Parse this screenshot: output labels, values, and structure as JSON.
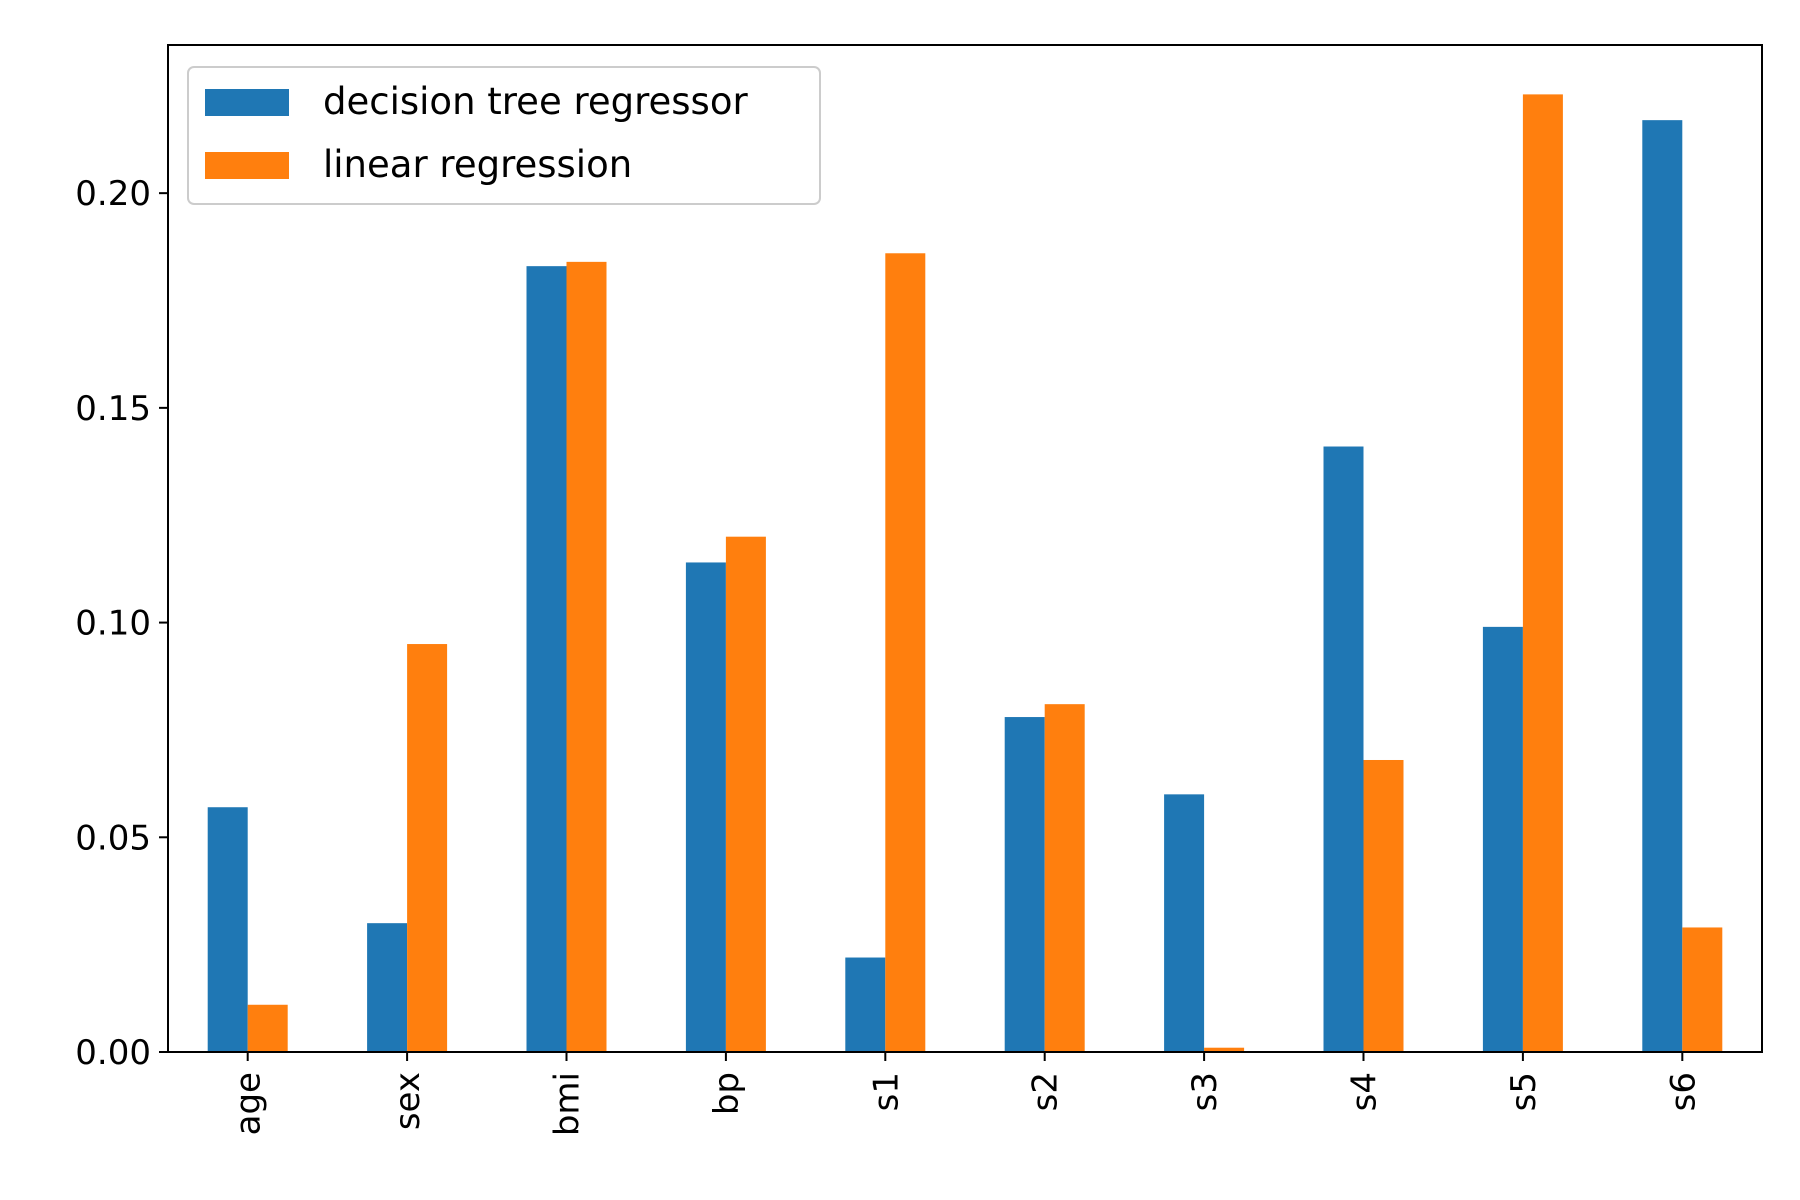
{
  "chart_data": {
    "type": "bar",
    "categories": [
      "age",
      "sex",
      "bmi",
      "bp",
      "s1",
      "s2",
      "s3",
      "s4",
      "s5",
      "s6"
    ],
    "series": [
      {
        "name": "decision tree regressor",
        "color": "#1f77b4",
        "values": [
          0.057,
          0.03,
          0.183,
          0.114,
          0.022,
          0.078,
          0.06,
          0.141,
          0.099,
          0.217
        ]
      },
      {
        "name": "linear regression",
        "color": "#ff7f0e",
        "values": [
          0.011,
          0.095,
          0.184,
          0.12,
          0.186,
          0.081,
          0.001,
          0.068,
          0.223,
          0.029
        ]
      }
    ],
    "title": "",
    "xlabel": "",
    "ylabel": "",
    "ylim": [
      0,
      0.2345
    ],
    "yticks": [
      "0.00",
      "0.05",
      "0.10",
      "0.15",
      "0.20"
    ],
    "ytick_values": [
      0,
      0.05,
      0.1,
      0.15,
      0.2
    ],
    "grid": false,
    "legend_position": "top-left",
    "xtick_rotation": "vertical"
  }
}
